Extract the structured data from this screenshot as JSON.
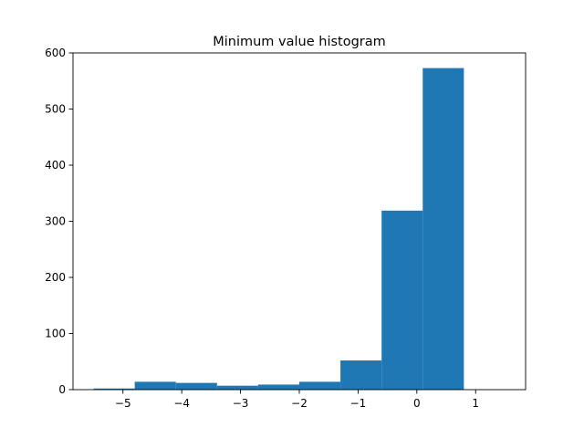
{
  "chart_data": {
    "type": "bar",
    "title": "Minimum value histogram",
    "xlabel": "",
    "ylabel": "",
    "xlim": [
      -5.85,
      1.85
    ],
    "ylim": [
      0,
      600
    ],
    "grid": false,
    "bar_color": "#1f77b4",
    "bins": [
      {
        "x0": -5.5,
        "x1": -4.8,
        "value": 2
      },
      {
        "x0": -4.8,
        "x1": -4.1,
        "value": 14
      },
      {
        "x0": -4.1,
        "x1": -3.4,
        "value": 12
      },
      {
        "x0": -3.4,
        "x1": -2.7,
        "value": 7
      },
      {
        "x0": -2.7,
        "x1": -2.0,
        "value": 9
      },
      {
        "x0": -2.0,
        "x1": -1.3,
        "value": 14
      },
      {
        "x0": -1.3,
        "x1": -0.6,
        "value": 52
      },
      {
        "x0": -0.6,
        "x1": 0.1,
        "value": 319
      },
      {
        "x0": 0.1,
        "x1": 0.8,
        "value": 573
      }
    ],
    "x_ticks": [
      {
        "value": -5,
        "label": "−5"
      },
      {
        "value": -4,
        "label": "−4"
      },
      {
        "value": -3,
        "label": "−3"
      },
      {
        "value": -2,
        "label": "−2"
      },
      {
        "value": -1,
        "label": "−1"
      },
      {
        "value": 0,
        "label": "0"
      },
      {
        "value": 1,
        "label": "1"
      }
    ],
    "y_ticks": [
      {
        "value": 0,
        "label": "0"
      },
      {
        "value": 100,
        "label": "100"
      },
      {
        "value": 200,
        "label": "200"
      },
      {
        "value": 300,
        "label": "300"
      },
      {
        "value": 400,
        "label": "400"
      },
      {
        "value": 500,
        "label": "500"
      },
      {
        "value": 600,
        "label": "600"
      }
    ]
  }
}
